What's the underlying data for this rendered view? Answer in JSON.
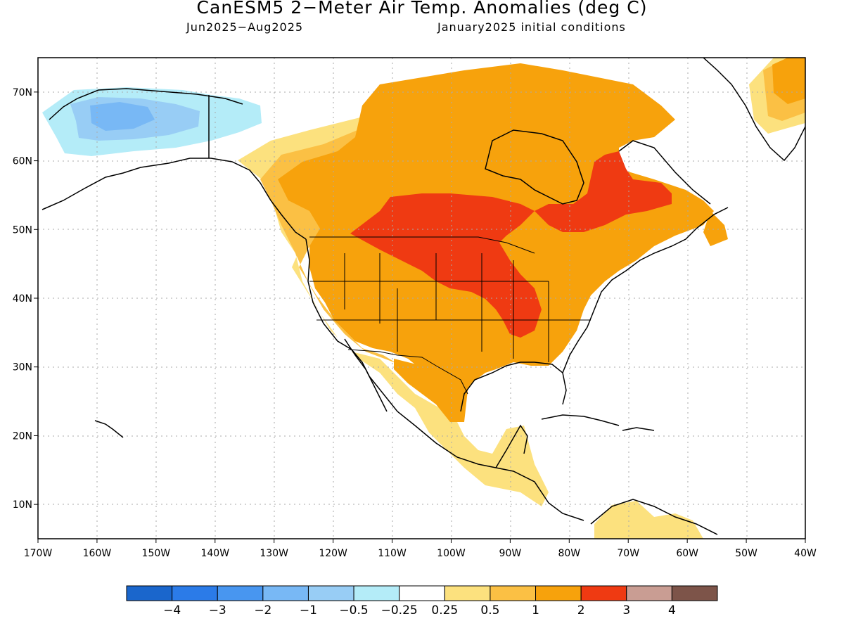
{
  "header": {
    "title": "CanESM5 2−Meter Air Temp. Anomalies (deg C)",
    "period": "Jun2025−Aug2025",
    "init": "January2025 initial conditions"
  },
  "axes": {
    "lon_labels": [
      "170W",
      "160W",
      "150W",
      "140W",
      "130W",
      "120W",
      "110W",
      "100W",
      "90W",
      "80W",
      "70W",
      "60W",
      "50W",
      "40W"
    ],
    "lat_labels": [
      "10N",
      "20N",
      "30N",
      "40N",
      "50N",
      "60N",
      "70N"
    ],
    "lon_values": [
      -170,
      -160,
      -150,
      -140,
      -130,
      -120,
      -110,
      -100,
      -90,
      -80,
      -70,
      -60,
      -50,
      -40
    ],
    "lat_values": [
      10,
      20,
      30,
      40,
      50,
      60,
      70
    ],
    "lon_range": [
      -170,
      -40
    ],
    "lat_range": [
      5,
      75
    ]
  },
  "colorbar": {
    "labels": [
      "−4",
      "−3",
      "−2",
      "−1",
      "−0.5",
      "−0.25",
      "0.25",
      "0.5",
      "1",
      "2",
      "3",
      "4"
    ],
    "colors": [
      "#1a66cc",
      "#2b7be8",
      "#4896f0",
      "#78b8f5",
      "#98cdf5",
      "#b4ecf8",
      "#ffffff",
      "#fce17e",
      "#fbc044",
      "#f7a20c",
      "#ef3a12",
      "#c99d93",
      "#7d5449"
    ]
  },
  "map_colors": {
    "land_outline": "#000000",
    "gridline": "#aaaaaa"
  }
}
